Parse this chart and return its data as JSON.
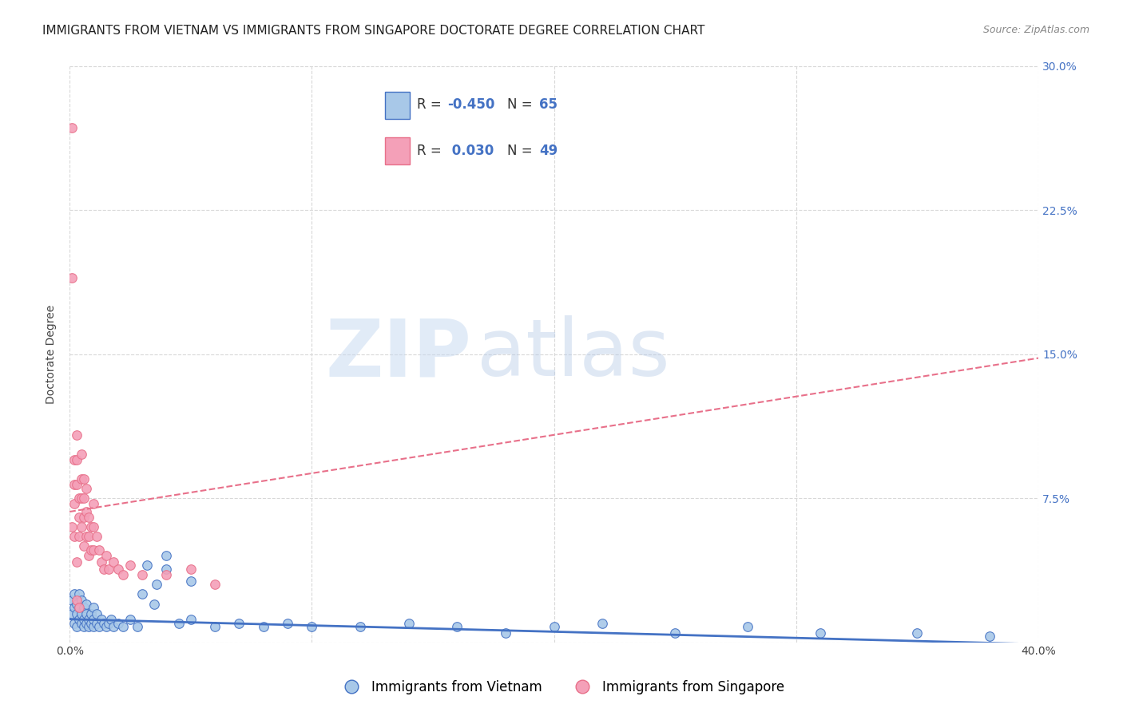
{
  "title": "IMMIGRANTS FROM VIETNAM VS IMMIGRANTS FROM SINGAPORE DOCTORATE DEGREE CORRELATION CHART",
  "source": "Source: ZipAtlas.com",
  "ylabel": "Doctorate Degree",
  "xlim": [
    0,
    0.4
  ],
  "ylim": [
    0,
    0.3
  ],
  "xticks": [
    0.0,
    0.1,
    0.2,
    0.3,
    0.4
  ],
  "yticks": [
    0.0,
    0.075,
    0.15,
    0.225,
    0.3
  ],
  "xticklabels": [
    "0.0%",
    "",
    "",
    "",
    "40.0%"
  ],
  "yticklabels_right": [
    "",
    "7.5%",
    "15.0%",
    "22.5%",
    "30.0%"
  ],
  "legend_label1": "Immigrants from Vietnam",
  "legend_label2": "Immigrants from Singapore",
  "color_vietnam": "#a8c8e8",
  "color_singapore": "#f4a0b8",
  "color_vietnam_dark": "#4472c4",
  "color_singapore_dark": "#e8708a",
  "color_right_axis": "#4472c4",
  "watermark_zip": "ZIP",
  "watermark_atlas": "atlas",
  "vietnam_x": [
    0.001,
    0.001,
    0.002,
    0.002,
    0.002,
    0.003,
    0.003,
    0.003,
    0.004,
    0.004,
    0.004,
    0.005,
    0.005,
    0.005,
    0.006,
    0.006,
    0.006,
    0.007,
    0.007,
    0.007,
    0.008,
    0.008,
    0.009,
    0.009,
    0.01,
    0.01,
    0.01,
    0.011,
    0.011,
    0.012,
    0.013,
    0.014,
    0.015,
    0.016,
    0.017,
    0.018,
    0.02,
    0.022,
    0.025,
    0.028,
    0.032,
    0.036,
    0.04,
    0.045,
    0.05,
    0.06,
    0.07,
    0.08,
    0.09,
    0.1,
    0.12,
    0.14,
    0.16,
    0.18,
    0.2,
    0.22,
    0.25,
    0.28,
    0.31,
    0.35,
    0.38,
    0.03,
    0.035,
    0.04,
    0.05
  ],
  "vietnam_y": [
    0.015,
    0.022,
    0.01,
    0.018,
    0.025,
    0.008,
    0.015,
    0.02,
    0.012,
    0.018,
    0.025,
    0.01,
    0.015,
    0.022,
    0.008,
    0.012,
    0.018,
    0.01,
    0.015,
    0.02,
    0.008,
    0.012,
    0.01,
    0.015,
    0.008,
    0.012,
    0.018,
    0.01,
    0.015,
    0.008,
    0.012,
    0.01,
    0.008,
    0.01,
    0.012,
    0.008,
    0.01,
    0.008,
    0.012,
    0.008,
    0.04,
    0.03,
    0.045,
    0.01,
    0.012,
    0.008,
    0.01,
    0.008,
    0.01,
    0.008,
    0.008,
    0.01,
    0.008,
    0.005,
    0.008,
    0.01,
    0.005,
    0.008,
    0.005,
    0.005,
    0.003,
    0.025,
    0.02,
    0.038,
    0.032
  ],
  "singapore_x": [
    0.001,
    0.001,
    0.001,
    0.002,
    0.002,
    0.002,
    0.002,
    0.003,
    0.003,
    0.003,
    0.003,
    0.004,
    0.004,
    0.004,
    0.005,
    0.005,
    0.005,
    0.005,
    0.006,
    0.006,
    0.006,
    0.006,
    0.007,
    0.007,
    0.007,
    0.008,
    0.008,
    0.008,
    0.009,
    0.009,
    0.01,
    0.01,
    0.01,
    0.011,
    0.012,
    0.013,
    0.014,
    0.015,
    0.016,
    0.018,
    0.02,
    0.022,
    0.025,
    0.03,
    0.04,
    0.05,
    0.06,
    0.003,
    0.004
  ],
  "singapore_y": [
    0.268,
    0.19,
    0.06,
    0.095,
    0.082,
    0.072,
    0.055,
    0.108,
    0.095,
    0.082,
    0.042,
    0.075,
    0.065,
    0.055,
    0.098,
    0.085,
    0.075,
    0.06,
    0.085,
    0.075,
    0.065,
    0.05,
    0.08,
    0.068,
    0.055,
    0.065,
    0.055,
    0.045,
    0.06,
    0.048,
    0.072,
    0.06,
    0.048,
    0.055,
    0.048,
    0.042,
    0.038,
    0.045,
    0.038,
    0.042,
    0.038,
    0.035,
    0.04,
    0.035,
    0.035,
    0.038,
    0.03,
    0.022,
    0.018
  ],
  "vietnam_trend_x": [
    0.0,
    0.4
  ],
  "vietnam_trend_y": [
    0.012,
    -0.001
  ],
  "singapore_trend_x": [
    0.0,
    0.4
  ],
  "singapore_trend_y": [
    0.068,
    0.148
  ],
  "grid_color": "#d8d8d8",
  "background_color": "#ffffff",
  "title_fontsize": 11,
  "axis_fontsize": 10,
  "tick_fontsize": 10
}
